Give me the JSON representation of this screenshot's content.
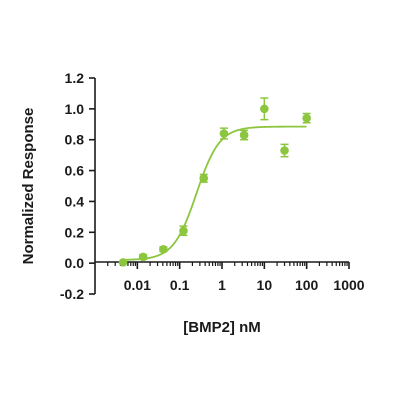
{
  "chart_data": {
    "type": "scatter",
    "xlabel": "[BMP2] nM",
    "ylabel": "Normalized Response",
    "xscale": "log",
    "xlim": [
      0.001,
      1000
    ],
    "ylim": [
      -0.2,
      1.2
    ],
    "x_tick_labels": [
      "0.01",
      "0.1",
      "1",
      "10",
      "100",
      "1000"
    ],
    "x_tick_values": [
      0.01,
      0.1,
      1,
      10,
      100,
      1000
    ],
    "y_tick_labels": [
      "-0.2",
      "0.0",
      "0.2",
      "0.4",
      "0.6",
      "0.8",
      "1.0",
      "1.2"
    ],
    "y_tick_values": [
      -0.2,
      0.0,
      0.2,
      0.4,
      0.6,
      0.8,
      1.0,
      1.2
    ],
    "grid": false,
    "series": [
      {
        "color": "#8cc63f",
        "points": [
          {
            "x": 0.0046,
            "y": 0.005,
            "err": 0.0
          },
          {
            "x": 0.0137,
            "y": 0.04,
            "err": 0.015
          },
          {
            "x": 0.0412,
            "y": 0.09,
            "err": 0.015
          },
          {
            "x": 0.123,
            "y": 0.21,
            "err": 0.03
          },
          {
            "x": 0.37,
            "y": 0.55,
            "err": 0.025
          },
          {
            "x": 1.11,
            "y": 0.84,
            "err": 0.035
          },
          {
            "x": 3.33,
            "y": 0.83,
            "err": 0.03
          },
          {
            "x": 10,
            "y": 1.0,
            "err": 0.07
          },
          {
            "x": 30,
            "y": 0.73,
            "err": 0.04
          },
          {
            "x": 100,
            "y": 0.94,
            "err": 0.03
          }
        ],
        "fit": {
          "model": "four-parameter logistic",
          "bottom": 0.02,
          "top": 0.885,
          "ec50": 0.25,
          "hill": 1.6
        }
      }
    ]
  }
}
